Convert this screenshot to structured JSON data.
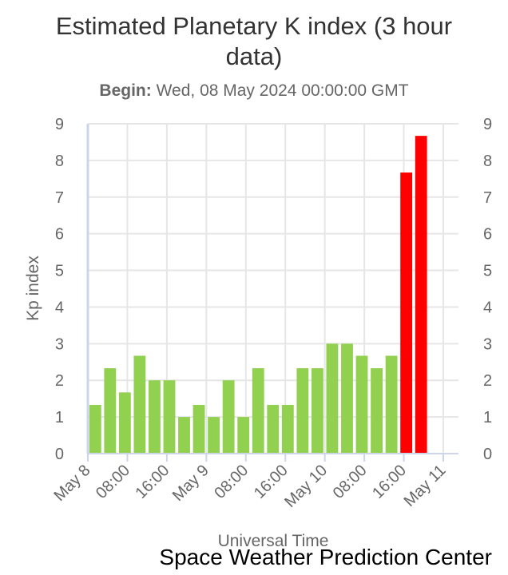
{
  "chart_data": {
    "type": "bar",
    "title": "Estimated Planetary K index (3 hour data)",
    "subtitle_label": "Begin:",
    "subtitle_value": "Wed, 08 May 2024 00:00:00 GMT",
    "xlabel": "Universal Time",
    "ylabel": "Kp index",
    "ylim": [
      0,
      9
    ],
    "yticks": [
      0,
      1,
      2,
      3,
      4,
      5,
      6,
      7,
      8,
      9
    ],
    "xlim_hours": [
      0,
      72
    ],
    "xticks": [
      {
        "hour": 0,
        "label": "May 8"
      },
      {
        "hour": 8,
        "label": "08:00"
      },
      {
        "hour": 16,
        "label": "16:00"
      },
      {
        "hour": 24,
        "label": "May 9"
      },
      {
        "hour": 32,
        "label": "08:00"
      },
      {
        "hour": 40,
        "label": "16:00"
      },
      {
        "hour": 48,
        "label": "May 10"
      },
      {
        "hour": 56,
        "label": "08:00"
      },
      {
        "hour": 64,
        "label": "16:00"
      },
      {
        "hour": 72,
        "label": "May 11"
      }
    ],
    "bar_interval_hours": 3,
    "values": [
      1.33,
      2.33,
      1.67,
      2.67,
      2.0,
      2.0,
      1.0,
      1.33,
      1.0,
      2.0,
      1.0,
      2.33,
      1.33,
      1.33,
      2.33,
      2.33,
      3.0,
      3.0,
      2.67,
      2.33,
      2.67,
      7.67,
      8.67
    ],
    "storm_threshold": 5,
    "colors": {
      "normal": "#92d050",
      "storm": "#ff0000"
    },
    "grid": true,
    "right_axis": true
  },
  "credit": "Space Weather Prediction Center"
}
